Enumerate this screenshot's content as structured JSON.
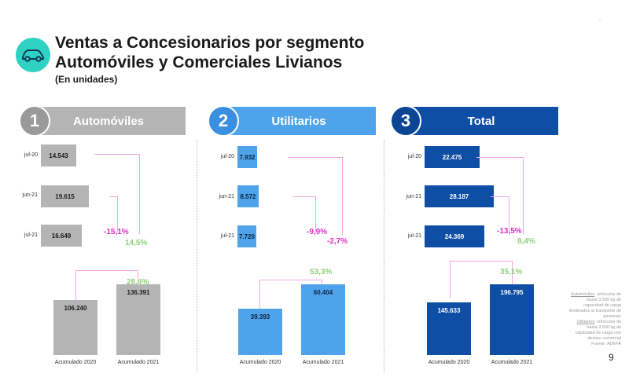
{
  "header": {
    "title_line1": "Ventas a Concesionarios por segmento",
    "title_line2": "Automóviles y Comerciales Livianos",
    "subtitle": "(En unidades)",
    "corner_mark": "-"
  },
  "colors": {
    "autos": "#b4b4b4",
    "autos_num": "#9a9a9a",
    "utilitarios": "#4fa3ea",
    "utilitarios_num": "#3b8fe0",
    "total": "#0f4ea5",
    "total_num": "#0d4595",
    "pink": "#e030c8",
    "green": "#8ed07a",
    "teal": "#2fd2c2"
  },
  "icons": {
    "logo": "car-icon"
  },
  "chart_data": [
    {
      "type": "bar",
      "orientation": "horizontal",
      "number": "1",
      "segment": "Automóviles",
      "categories": [
        "jul-20",
        "jun-21",
        "jul-21"
      ],
      "values": [
        14543,
        19615,
        16649
      ],
      "value_labels": [
        "14.543",
        "19.615",
        "16.649"
      ],
      "change_vs_prev_month": "-15,1%",
      "change_vs_prev_year": "14,5%",
      "xlim": [
        0,
        22475
      ]
    },
    {
      "type": "bar",
      "orientation": "vertical",
      "segment": "Automóviles",
      "categories": [
        "Acumulado 2020",
        "Acumulado 2021"
      ],
      "values": [
        106240,
        136391
      ],
      "value_labels": [
        "106.240",
        "136.391"
      ],
      "change": "28,4%",
      "ylim": [
        0,
        136391
      ]
    },
    {
      "type": "bar",
      "orientation": "horizontal",
      "number": "2",
      "segment": "Utilitarios",
      "categories": [
        "jul-20",
        "jun-21",
        "jul-21"
      ],
      "values": [
        7932,
        8572,
        7720
      ],
      "value_labels": [
        "7.932",
        "8.572",
        "7.720"
      ],
      "change_vs_prev_month": "-9,9%",
      "change_vs_prev_year": "-2,7%",
      "xlim": [
        0,
        22475
      ]
    },
    {
      "type": "bar",
      "orientation": "vertical",
      "segment": "Utilitarios",
      "categories": [
        "Acumulado 2020",
        "Acumulado 2021"
      ],
      "values": [
        39393,
        60404
      ],
      "value_labels": [
        "39.393",
        "60.404"
      ],
      "change": "53,3%",
      "ylim": [
        0,
        60404
      ]
    },
    {
      "type": "bar",
      "orientation": "horizontal",
      "number": "3",
      "segment": "Total",
      "categories": [
        "jul-20",
        "jun-21",
        "jul-21"
      ],
      "values": [
        22475,
        28187,
        24369
      ],
      "value_labels": [
        "22.475",
        "28.187",
        "24.369"
      ],
      "change_vs_prev_month": "-13,5%",
      "change_vs_prev_year": "8,4%",
      "xlim": [
        0,
        22475
      ]
    },
    {
      "type": "bar",
      "orientation": "vertical",
      "segment": "Total",
      "categories": [
        "Acumulado 2020",
        "Acumulado 2021"
      ],
      "values": [
        145633,
        196795
      ],
      "value_labels": [
        "145.633",
        "196.795"
      ],
      "change": "35,1%",
      "ylim": [
        0,
        196795
      ]
    }
  ],
  "footnote": {
    "autos_term": "Automóviles",
    "autos_def": ": vehículos de hasta 3.500 kg de capacidad de carga destinados al transporte de personas",
    "util_term": "Utilitarios",
    "util_def": ": vehículos de hasta 3.500 kg de capacidad de carga con destino comercial",
    "source": "Fuente: ADEFA"
  },
  "page_number": "9"
}
